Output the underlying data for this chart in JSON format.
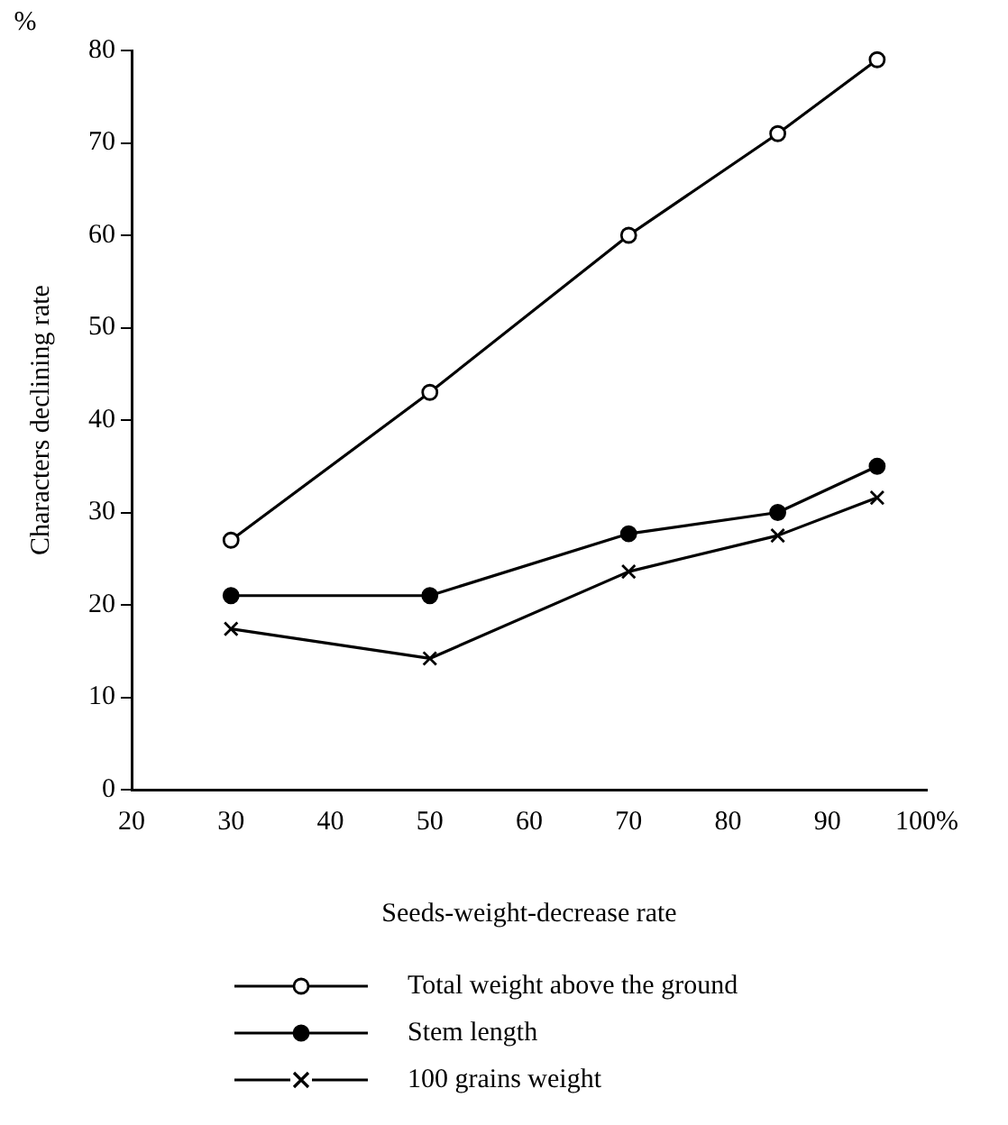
{
  "chart_data": {
    "type": "line",
    "xlabel": "Seeds-weight-decrease rate",
    "ylabel": "Characters declining rate",
    "annotations": [
      "%"
    ],
    "xlim": [
      20,
      100
    ],
    "xticks": [
      20,
      30,
      40,
      50,
      60,
      70,
      80,
      90,
      {
        "value": 100,
        "label": "100%"
      }
    ],
    "ylim": [
      0,
      80
    ],
    "yticks": [
      0,
      10,
      20,
      30,
      40,
      50,
      60,
      70,
      80
    ],
    "x": [
      30,
      50,
      70,
      85,
      95
    ],
    "series": [
      {
        "name": "Total weight above the ground",
        "color": "#000000",
        "marker": "circle",
        "values": [
          27,
          43,
          60,
          71,
          79
        ]
      },
      {
        "name": "Stem length",
        "color": "#000000",
        "marker": "circle",
        "values": [
          21,
          21,
          27.7,
          30,
          35
        ]
      },
      {
        "name": "100 grains weight",
        "color": "#000000",
        "marker": "cross",
        "values": [
          17.4,
          14.2,
          23.6,
          27.5,
          31.6
        ]
      }
    ],
    "grid": false,
    "legend": "bottom",
    "line_style": "solid"
  }
}
